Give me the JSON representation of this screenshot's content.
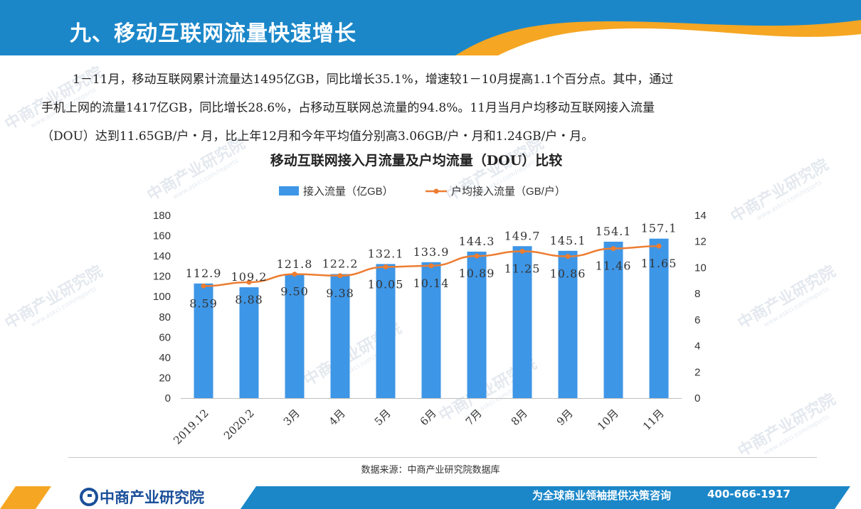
{
  "header": {
    "title": "九、移动互联网流量快速增长"
  },
  "paragraph": {
    "line1": "1－11月，移动互联网累计流量达1495亿GB，同比增长35.1%，增速较1－10月提高1.1个百分点。其中，通过",
    "line2": "手机上网的流量1417亿GB，同比增长28.6%，占移动互联网总流量的94.8%。11月当月户均移动互联网接入流量",
    "line3": "（DOU）达到11.65GB/户・月，比上年12月和今年平均值分别高3.06GB/户・月和1.24GB/户・月。"
  },
  "watermark": {
    "name": "中商产业研究院",
    "url": "www.askci.com/reports"
  },
  "chart_data": {
    "type": "bar",
    "title": "移动互联网接入月流量及户均流量（DOU）比较",
    "categories": [
      "2019.12",
      "2020.2",
      "3月",
      "4月",
      "5月",
      "6月",
      "7月",
      "8月",
      "9月",
      "10月",
      "11月"
    ],
    "series": [
      {
        "name": "接入流量（亿GB）",
        "type": "bar",
        "axis": "left",
        "color": "#3e96e6",
        "values": [
          112.9,
          109.2,
          121.8,
          122.2,
          132.1,
          133.9,
          144.3,
          149.7,
          145.1,
          154.1,
          157.1
        ],
        "labels": [
          "112.9",
          "109.2",
          "121.8",
          "122.2",
          "132.1",
          "133.9",
          "144.3",
          "149.7",
          "145.1",
          "154.1",
          "157.1"
        ]
      },
      {
        "name": "户均接入流量（GB/户）",
        "type": "line",
        "axis": "right",
        "color": "#ed7d31",
        "values": [
          8.59,
          8.88,
          9.5,
          9.38,
          10.05,
          10.14,
          10.89,
          11.25,
          10.86,
          11.46,
          11.65
        ],
        "labels": [
          "8.59",
          "8.88",
          "9.50",
          "9.38",
          "10.05",
          "10.14",
          "10.89",
          "11.25",
          "10.86",
          "11.46",
          "11.65"
        ]
      }
    ],
    "ylim_left": [
      0,
      180
    ],
    "yticks_left": [
      "0",
      "20",
      "40",
      "60",
      "80",
      "100",
      "120",
      "140",
      "160",
      "180"
    ],
    "ylim_right": [
      0,
      14
    ],
    "yticks_right": [
      "0",
      "2",
      "4",
      "6",
      "8",
      "10",
      "12",
      "14"
    ],
    "grid": false,
    "legend": "top"
  },
  "source": "数据来源：中商产业研究院数据库",
  "footer": {
    "logo": "中商产业研究院",
    "slogan": "为全球商业领袖提供决策咨询",
    "phone": "400-666-1917"
  },
  "colors": {
    "header_blue": "#1b87c9",
    "accent_orange": "#f5a623",
    "bar": "#3e96e6",
    "line": "#ed7d31",
    "logo": "#1a4f99"
  }
}
